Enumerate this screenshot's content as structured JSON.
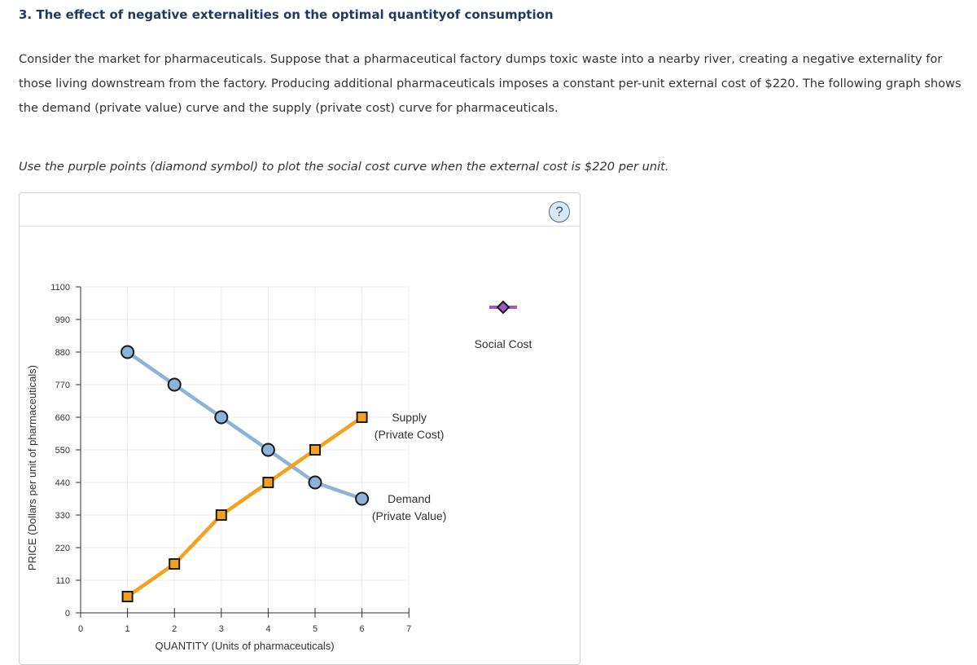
{
  "title": "3. The effect of negative externalities on the optimal quantityof consumption",
  "paragraph": "Consider the market for pharmaceuticals. Suppose that a pharmaceutical factory dumps toxic waste into a nearby river, creating a negative externality for those living downstream from the factory. Producing additional pharmaceuticals imposes a constant per-unit external cost of $220. The following graph shows the demand (private value) curve and the supply (private cost) curve for pharmaceuticals.",
  "instruction": "Use the purple points (diamond symbol) to plot the social cost curve when the external cost is $220 per unit.",
  "help_label": "?",
  "colors": {
    "demand": "#8db3d8",
    "demand_fill": "#8db3d8",
    "supply": "#f5a21b",
    "supply_fill": "#f5a21b",
    "social_cost": "#9b59c9",
    "social_cost_fill": "#9b59c9",
    "grid": "#eeeeee",
    "axis": "#333333"
  },
  "chart_data": {
    "type": "line",
    "xlabel": "QUANTITY (Units of pharmaceuticals)",
    "ylabel": "PRICE (Dollars per unit of pharmaceuticals)",
    "xlim": [
      0,
      7
    ],
    "ylim": [
      0,
      1100
    ],
    "x_ticks": [
      "0",
      "1",
      "2",
      "3",
      "4",
      "5",
      "6",
      "7"
    ],
    "y_ticks": [
      "0",
      "110",
      "220",
      "330",
      "440",
      "550",
      "660",
      "770",
      "880",
      "990",
      "1100"
    ],
    "series": [
      {
        "name": "Demand",
        "label_lines": [
          "Demand",
          "(Private Value)"
        ],
        "marker": "circle",
        "points": [
          [
            1,
            880
          ],
          [
            2,
            770
          ],
          [
            3,
            660
          ],
          [
            4,
            550
          ],
          [
            5,
            440
          ],
          [
            6,
            385
          ]
        ]
      },
      {
        "name": "Supply",
        "label_lines": [
          "Supply",
          "(Private Cost)"
        ],
        "marker": "square",
        "points": [
          [
            1,
            55
          ],
          [
            2,
            165
          ],
          [
            3,
            330
          ],
          [
            4,
            440
          ],
          [
            5,
            550
          ],
          [
            6,
            660
          ]
        ]
      }
    ],
    "legend": {
      "label": "Social Cost",
      "marker": "diamond",
      "placement": "right"
    }
  }
}
